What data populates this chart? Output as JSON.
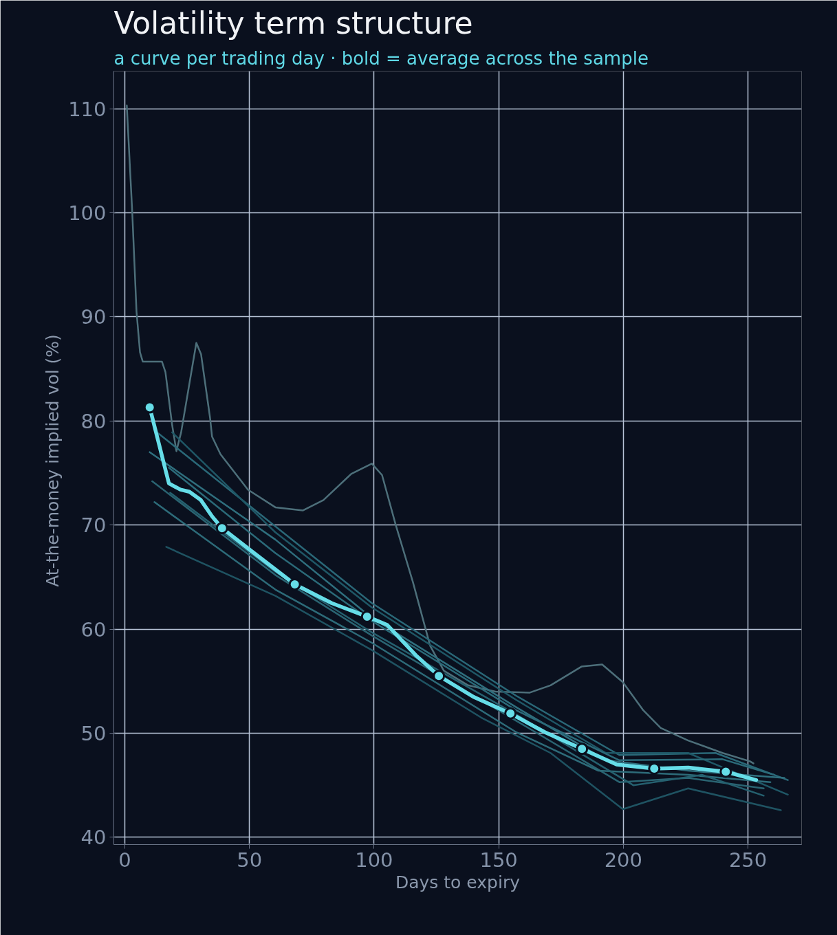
{
  "chart_data": {
    "type": "line",
    "title": "Volatility term structure",
    "subtitle": "a curve per trading day · bold = average across the sample",
    "xlabel": "Days to expiry",
    "ylabel": "At-the-money implied vol  (%)",
    "xlim": [
      -4.4,
      271.5
    ],
    "ylim": [
      39.3,
      113.6
    ],
    "xticks": [
      0,
      50,
      100,
      150,
      200,
      250
    ],
    "yticks": [
      40,
      50,
      60,
      70,
      80,
      90,
      100,
      110
    ],
    "grid": true,
    "series": [
      {
        "color": "#4d6f7a",
        "x": [
          0.8,
          3,
          4.7,
          6.1,
          7.2,
          14.9,
          16.3,
          19,
          20.7,
          22.6,
          26,
          28.7,
          30.6,
          34.2,
          35,
          38.4,
          49.4,
          60.4,
          71.5,
          79.7,
          90.8,
          99.1,
          103.2,
          108.7,
          115.6,
          122.5,
          128,
          137.7,
          148.7,
          162.5,
          170.8,
          183.2,
          191.5,
          199.8,
          208,
          215,
          226,
          239.8,
          250.8,
          252.2
        ],
        "values": [
          110.3,
          100,
          90.5,
          86.6,
          85.7,
          85.7,
          84.7,
          79.6,
          77.1,
          78.9,
          83.7,
          87.5,
          86.4,
          80.3,
          78.5,
          76.8,
          73.4,
          71.7,
          71.4,
          72.4,
          74.9,
          75.9,
          74.8,
          70,
          64.5,
          58.4,
          56,
          54.6,
          54,
          53.9,
          54.6,
          56.4,
          56.6,
          54.9,
          52.2,
          50.5,
          49.3,
          48.1,
          47.3,
          47.1
        ]
      },
      {
        "color": "#2a6878",
        "x": [
          13.5,
          99.1,
          157,
          198.4,
          237,
          266
        ],
        "values": [
          78.8,
          62.5,
          53.6,
          47.9,
          48.1,
          45.5
        ]
      },
      {
        "color": "#2f6f7e",
        "x": [
          10,
          60.4,
          99,
          157,
          193,
          226,
          264.6
        ],
        "values": [
          77,
          68.6,
          61.1,
          52.5,
          47.4,
          46.4,
          45.7
        ]
      },
      {
        "color": "#2a6472",
        "x": [
          11,
          60.4,
          99,
          157,
          198.4,
          226,
          256.3
        ],
        "values": [
          74.2,
          65.2,
          59.4,
          51.2,
          45.3,
          45.7,
          44.7
        ]
      },
      {
        "color": "#2d6b79",
        "x": [
          11.9,
          60.4,
          99,
          157,
          190,
          226,
          259
        ],
        "values": [
          72.2,
          63.8,
          58.7,
          50.1,
          46.4,
          46,
          45.3
        ]
      },
      {
        "color": "#1f5362",
        "x": [
          16.6,
          60.4,
          99,
          143,
          170.8,
          199.8,
          226,
          263.2
        ],
        "values": [
          67.9,
          63.2,
          58,
          51.5,
          48.1,
          42.7,
          44.7,
          42.6
        ]
      },
      {
        "color": "#25606f",
        "x": [
          18.2,
          60.4,
          99,
          157,
          204,
          231.5,
          256.3
        ],
        "values": [
          73.1,
          65.5,
          59.7,
          51.8,
          45,
          46,
          44
        ]
      },
      {
        "color": "#1f5766",
        "x": [
          19,
          60.4,
          99,
          157,
          193,
          226,
          266
        ],
        "values": [
          78.9,
          69.3,
          62.1,
          53.2,
          48.1,
          48.1,
          44.1
        ]
      },
      {
        "color": "#2b6a79",
        "x": [
          17.7,
          60.4,
          99,
          157,
          198.4,
          239.8,
          260.5
        ],
        "values": [
          75.5,
          67.3,
          60.8,
          52.2,
          47.4,
          47.5,
          46
        ]
      },
      {
        "color": "#66dde8",
        "x": [
          10,
          17.7,
          22.3,
          25.9,
          30.5,
          35.1,
          39,
          50.8,
          68.2,
          83,
          97.2,
          105.3,
          116.7,
          126,
          139.8,
          154.7,
          168.5,
          183.4,
          197.3,
          212.4,
          226,
          241.1,
          253.3
        ],
        "values": [
          81.3,
          74,
          73.4,
          73.2,
          72.4,
          70.8,
          69.7,
          67.5,
          64.3,
          62.5,
          61.2,
          60.4,
          57.5,
          55.5,
          53.5,
          51.9,
          50.1,
          48.5,
          47.0,
          46.6,
          46.7,
          46.3,
          45.5
        ]
      },
      {
        "type": "scatter",
        "marker": "circle",
        "color": "#66dde8",
        "x": [
          10,
          39,
          68.2,
          97.2,
          126,
          154.7,
          183.4,
          212.4,
          241.1
        ],
        "values": [
          81.3,
          69.7,
          64.3,
          61.2,
          55.5,
          51.9,
          48.5,
          46.6,
          46.3
        ]
      }
    ]
  }
}
